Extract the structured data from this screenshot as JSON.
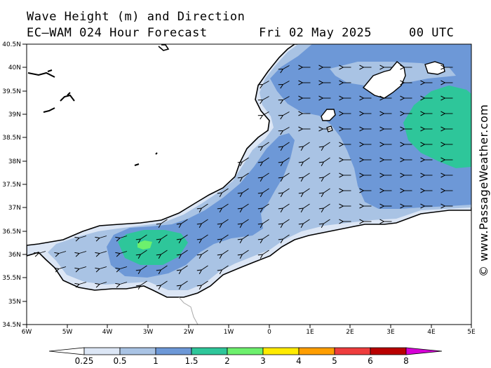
{
  "title": {
    "line1": "Wave Height (m) and Direction",
    "line2": "EC—WAM 024 Hour Forecast",
    "date": "Fri 02 May 2025",
    "hour": "00 UTC"
  },
  "credit": "© www.PassageWeather.com",
  "axes": {
    "lat_labels": [
      "40.5N",
      "40N",
      "39.5N",
      "39N",
      "38.5N",
      "38N",
      "37.5N",
      "37N",
      "36.5N",
      "36N",
      "35.5N",
      "35N",
      "34.5N"
    ],
    "lon_labels": [
      "6W",
      "5W",
      "4W",
      "3W",
      "2W",
      "1W",
      "0",
      "1E",
      "2E",
      "3E",
      "4E",
      "5E"
    ]
  },
  "legend": {
    "labels": [
      "0.25",
      "0.5",
      "1",
      "1.5",
      "2",
      "3",
      "4",
      "5",
      "6",
      "8"
    ],
    "colors": [
      "#ffffff",
      "#dce6f5",
      "#a9c3e4",
      "#6d98d7",
      "#2ec69a",
      "#6df06d",
      "#ffeb00",
      "#ff9e00",
      "#ee3d3d",
      "#b90000",
      "#d600d6"
    ]
  },
  "map_colors": {
    "land": "#ffffff",
    "sea_low": "#dce6f5",
    "sea_mid": "#a9c3e4",
    "sea_high": "#6d98d7",
    "sea_green": "#2ec69a",
    "sea_lime": "#6df06d"
  }
}
